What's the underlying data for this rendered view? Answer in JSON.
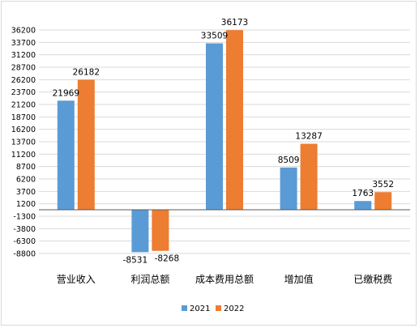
{
  "chart_data": {
    "type": "bar",
    "title": "",
    "xlabel": "",
    "ylabel": "",
    "categories": [
      "营业收入",
      "利润总额",
      "成本费用总额",
      "增加值",
      "已缴税费"
    ],
    "series": [
      {
        "name": "2021",
        "color": "#5b9bd5",
        "values": [
          21969,
          -8531,
          33509,
          8509,
          1763
        ]
      },
      {
        "name": "2022",
        "color": "#ed7d31",
        "values": [
          26182,
          -8268,
          36173,
          13287,
          3552
        ]
      }
    ],
    "ylim": [
      -8800,
      36200
    ],
    "yticks": [
      36200,
      33700,
      31200,
      28700,
      26200,
      23700,
      21200,
      18700,
      16200,
      13700,
      11200,
      8700,
      6200,
      3700,
      1200,
      -1300,
      -3800,
      -6300,
      -8800
    ],
    "grid": true,
    "legend": "bottom"
  }
}
